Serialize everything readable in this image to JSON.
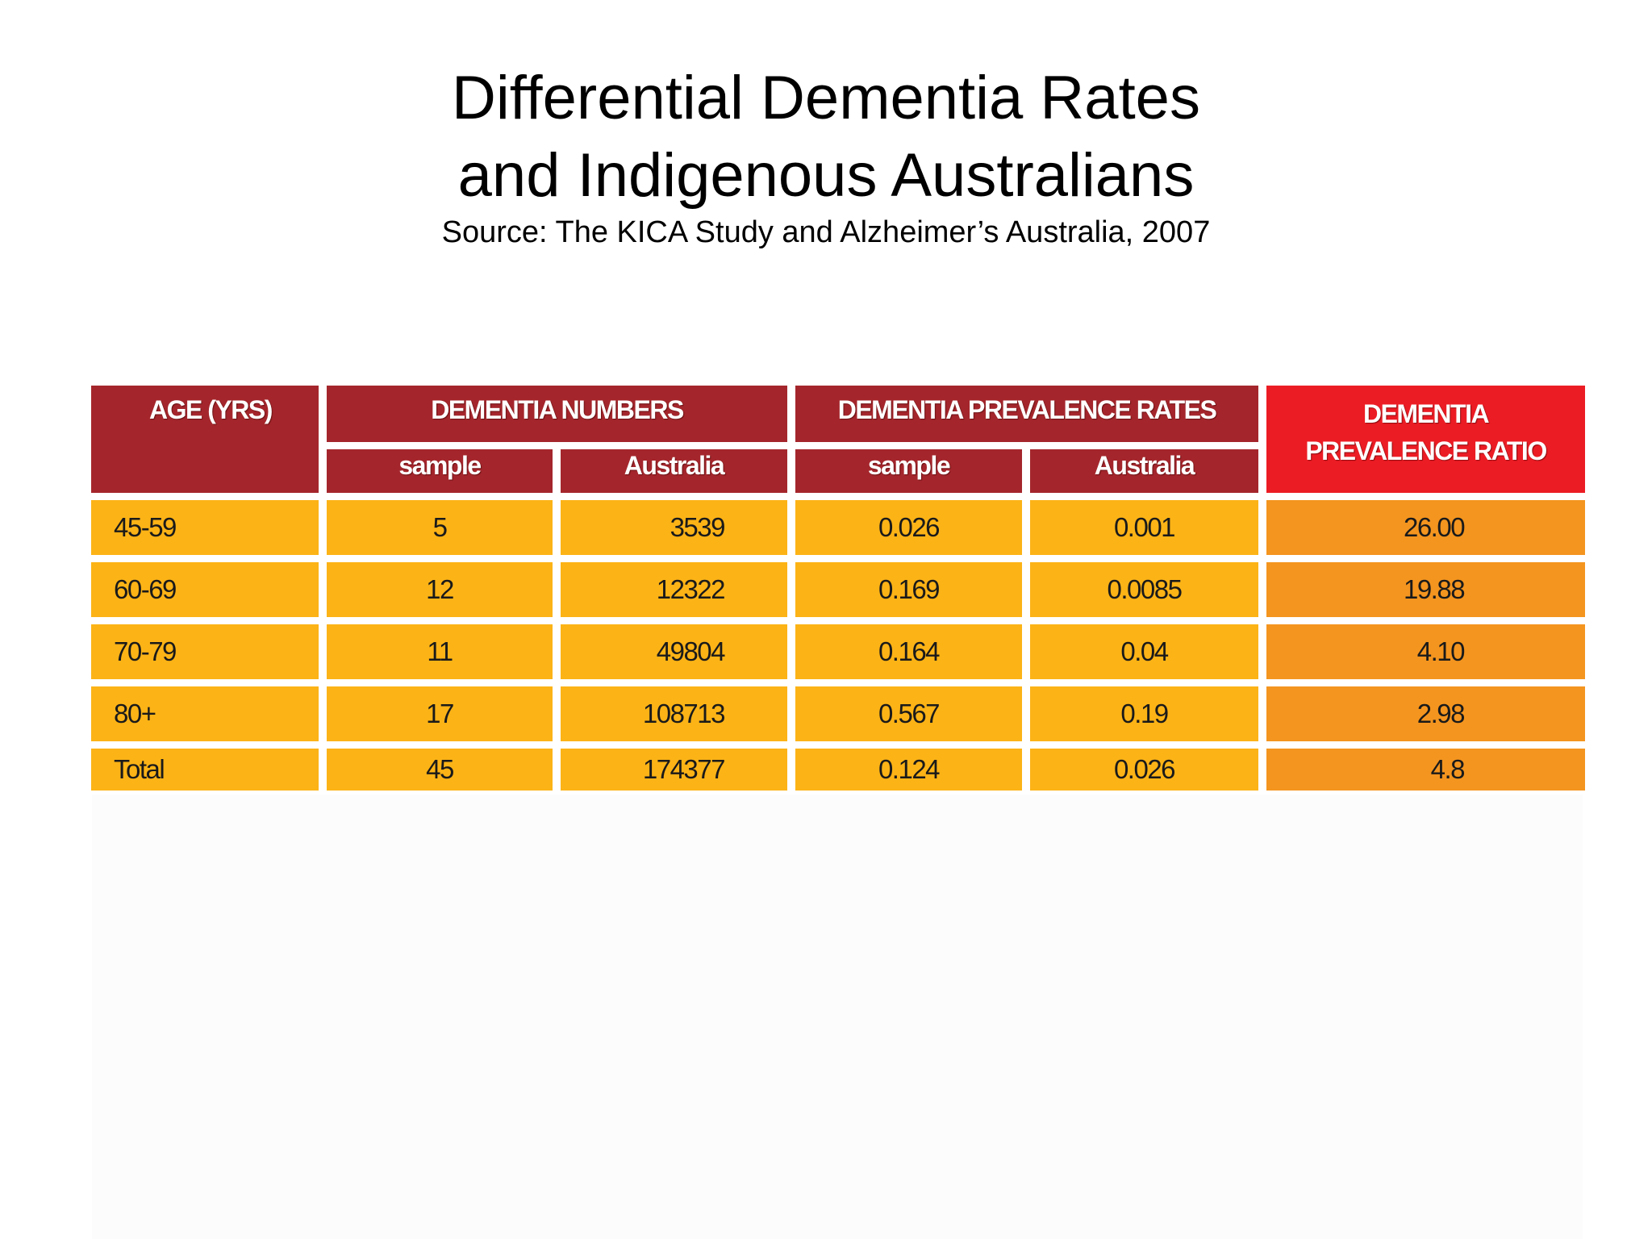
{
  "title": {
    "line1": "Differential Dementia Rates",
    "line2": "and Indigenous Australians"
  },
  "source": "Source: The KICA Study and Alzheimer’s Australia, 2007",
  "table": {
    "headers": {
      "age": "AGE (YRS)",
      "numbers": "DEMENTIA NUMBERS",
      "rates": "DEMENTIA PREVALENCE RATES",
      "ratio_line1": "DEMENTIA",
      "ratio_line2": "PREVALENCE RATIO",
      "sub_sample": "sample",
      "sub_australia": "Australia"
    },
    "rows": [
      {
        "age": "45-59",
        "num_sample": "5",
        "num_australia": "3539",
        "rate_sample": "0.026",
        "rate_australia": "0.001",
        "ratio": "26.00"
      },
      {
        "age": "60-69",
        "num_sample": "12",
        "num_australia": "12322",
        "rate_sample": "0.169",
        "rate_australia": "0.0085",
        "ratio": "19.88"
      },
      {
        "age": "70-79",
        "num_sample": "11",
        "num_australia": "49804",
        "rate_sample": "0.164",
        "rate_australia": "0.04",
        "ratio": "4.10"
      },
      {
        "age": "80+",
        "num_sample": "17",
        "num_australia": "108713",
        "rate_sample": "0.567",
        "rate_australia": "0.19",
        "ratio": "2.98"
      },
      {
        "age": "Total",
        "num_sample": "45",
        "num_australia": "174377",
        "rate_sample": "0.124",
        "rate_australia": "0.026",
        "ratio": "4.8"
      }
    ]
  },
  "colors": {
    "header": "#a4262c",
    "ratio_header": "#ec1c24",
    "cell": "#fcb316",
    "ratio_cell": "#f4951f"
  }
}
